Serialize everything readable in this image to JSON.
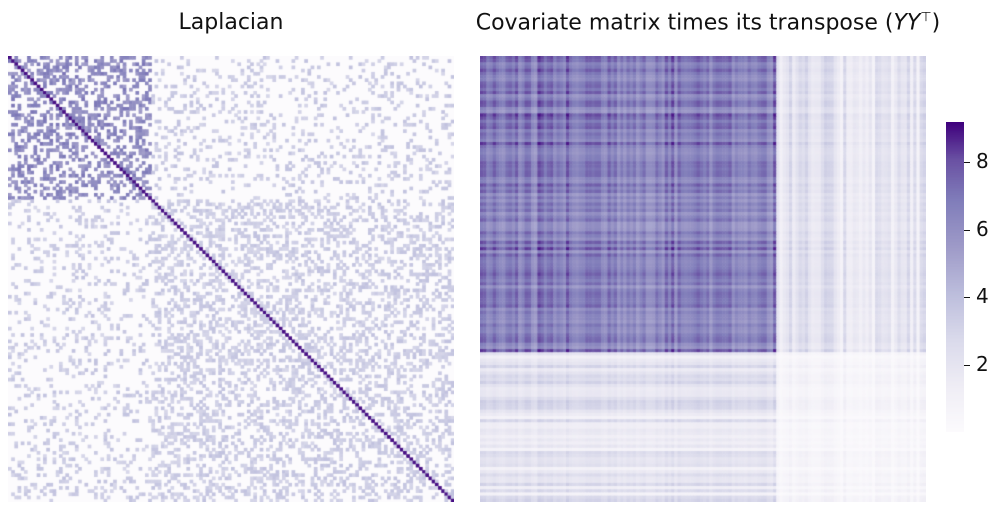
{
  "figure": {
    "panels": [
      {
        "title": "Laplacian"
      },
      {
        "title": "Covariate matrix times its transpose (",
        "title_math": "YY",
        "title_sup": "⊤",
        "title_end": ")"
      }
    ],
    "colorbar": {
      "colormap": "Purples",
      "color_low": "#fcfbfd",
      "color_high": "#3f007d",
      "min": 0,
      "max": 9.2,
      "ticks": [
        "8",
        "6",
        "4",
        "2"
      ],
      "tick_values": [
        8,
        6,
        4,
        2
      ]
    }
  },
  "chart_data": [
    {
      "type": "heatmap",
      "title": "Laplacian",
      "size": 140,
      "value_range": [
        0,
        9.2
      ],
      "blocks": [
        {
          "rows": [
            0,
            45
          ],
          "cols": [
            0,
            45
          ],
          "off_diagonal_value": 6.2,
          "density": 0.42
        },
        {
          "rows": [
            45,
            140
          ],
          "cols": [
            45,
            140
          ],
          "off_diagonal_value": 3.4,
          "density": 0.36
        },
        {
          "rows": [
            0,
            45
          ],
          "cols": [
            45,
            140
          ],
          "off_diagonal_value": 3.4,
          "density": 0.17
        },
        {
          "rows": [
            45,
            140
          ],
          "cols": [
            0,
            45
          ],
          "off_diagonal_value": 3.4,
          "density": 0.17
        }
      ],
      "diagonal_value": 9.0,
      "xlabel": "",
      "ylabel": ""
    },
    {
      "type": "heatmap",
      "title": "Covariate matrix times its transpose (YY⊤)",
      "size": 140,
      "value_range": [
        0,
        9.2
      ],
      "row_groups": [
        {
          "rows": [
            0,
            93
          ],
          "level": "high"
        },
        {
          "rows": [
            93,
            140
          ],
          "level": "low"
        }
      ],
      "col_groups": [
        {
          "cols": [
            0,
            93
          ],
          "level": "high"
        },
        {
          "cols": [
            93,
            140
          ],
          "level": "low"
        }
      ],
      "max_value": 9.0,
      "xlabel": "",
      "ylabel": ""
    }
  ]
}
